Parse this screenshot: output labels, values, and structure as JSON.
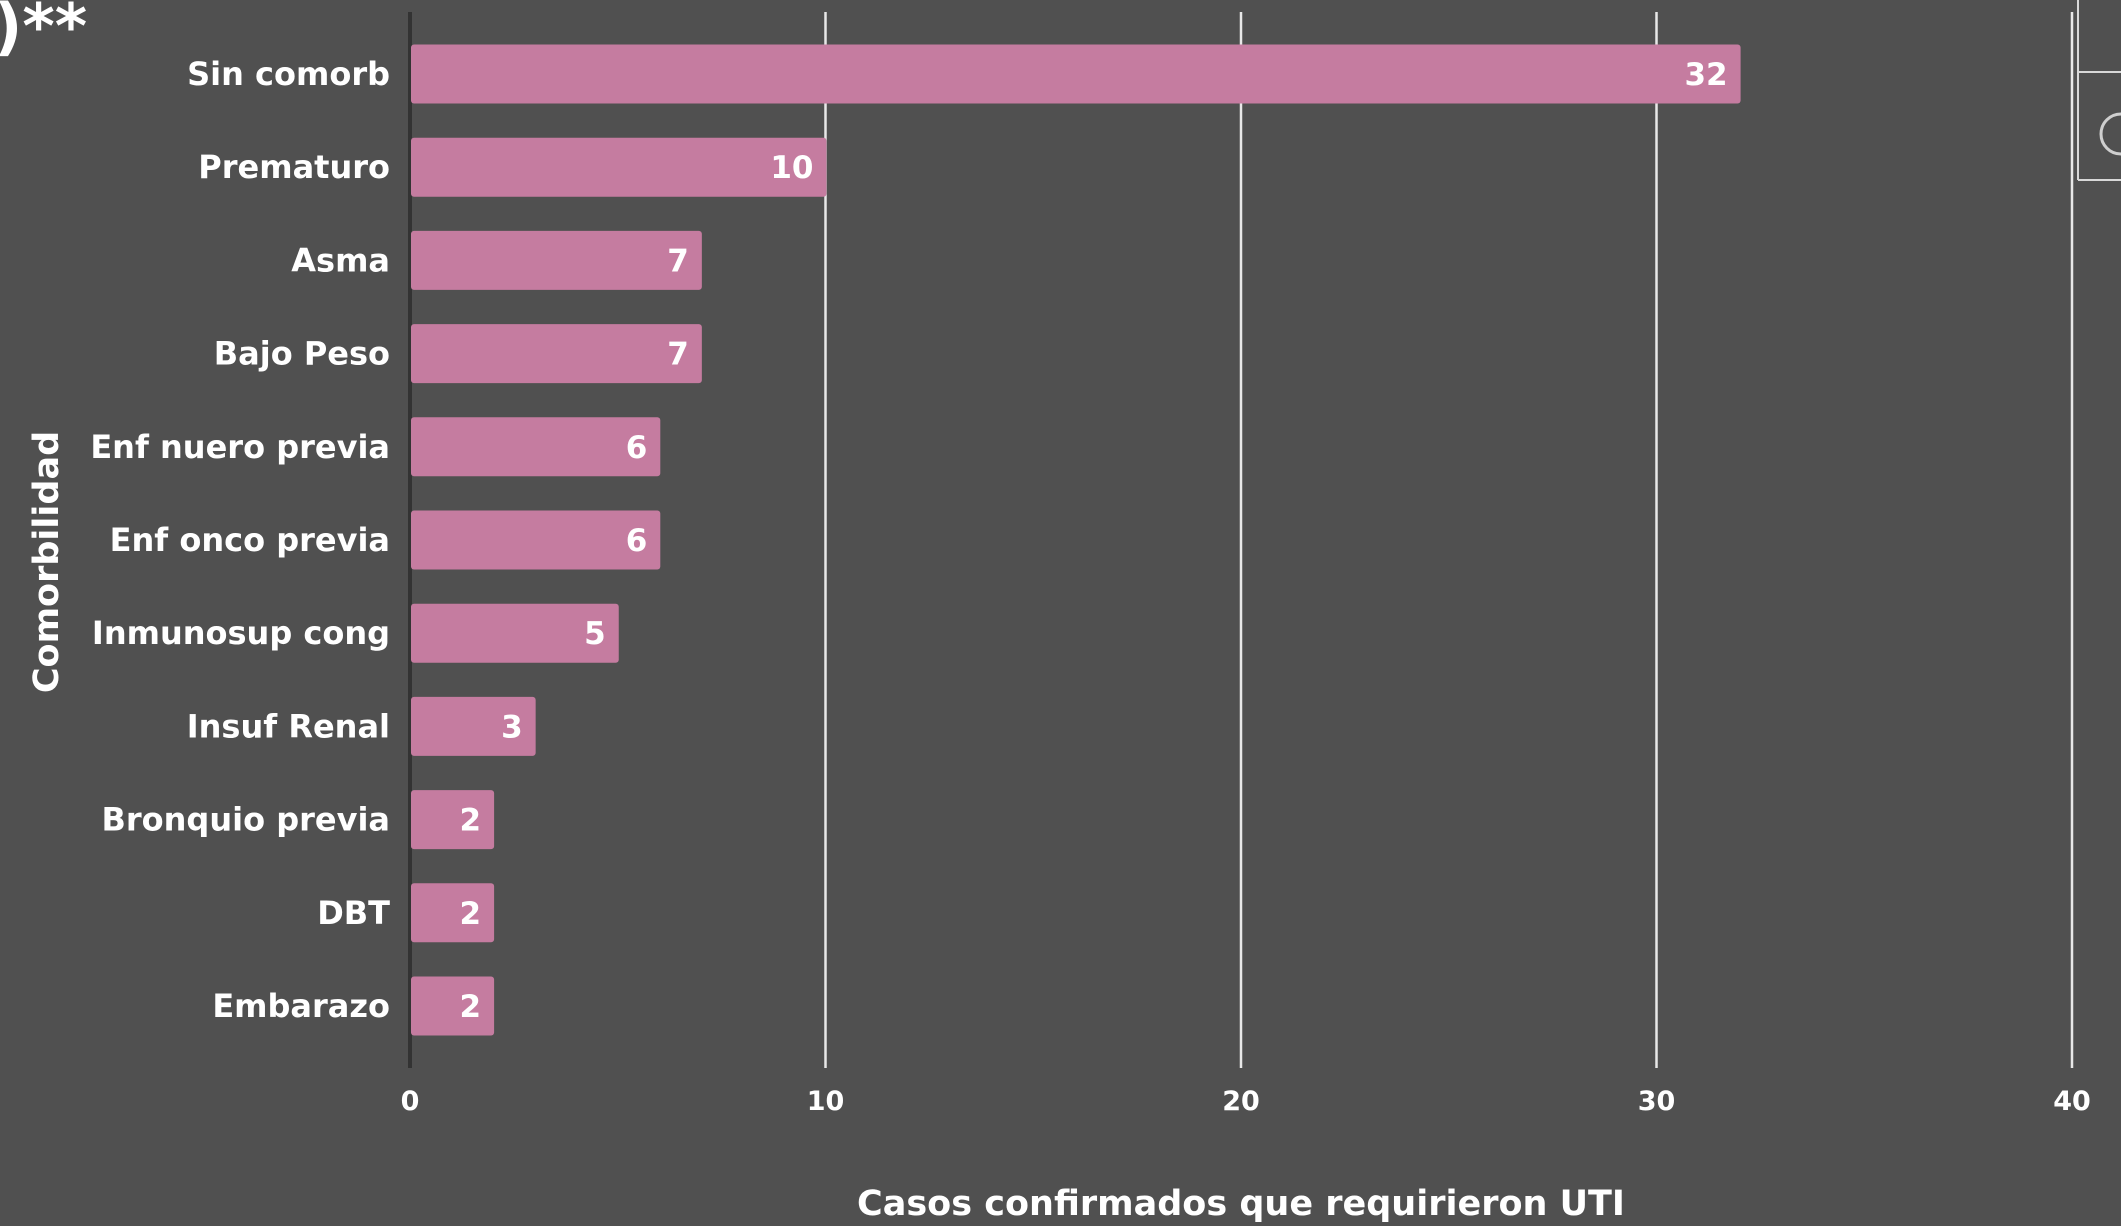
{
  "fragment_text": ")**",
  "chart_data": {
    "type": "bar",
    "orientation": "horizontal",
    "categories": [
      "Sin comorb",
      "Prematuro",
      "Asma",
      "Bajo Peso",
      "Enf nuero previa",
      "Enf onco previa",
      "Inmunosup cong",
      "Insuf Renal",
      "Bronquio previa",
      "DBT",
      "Embarazo"
    ],
    "values": [
      32,
      10,
      7,
      7,
      6,
      6,
      5,
      3,
      2,
      2,
      2
    ],
    "value_labels": [
      "32",
      "10",
      "7",
      "7",
      "6",
      "6",
      "5",
      "3",
      "2",
      "2",
      "2"
    ],
    "xlabel": "Casos confirmados que requirieron UTI",
    "ylabel": "Comorbilidad",
    "xlim": [
      0,
      40
    ],
    "xticks": [
      "0",
      "10",
      "20",
      "30",
      "40"
    ],
    "xtick_values": [
      0,
      10,
      20,
      30,
      40
    ],
    "grid": "vertical",
    "legend": "none",
    "colors": {
      "bar": "#c57ca0",
      "background": "#505050",
      "grid": "#e8e8e8",
      "text": "#ffffff",
      "axis": "#333333"
    }
  }
}
